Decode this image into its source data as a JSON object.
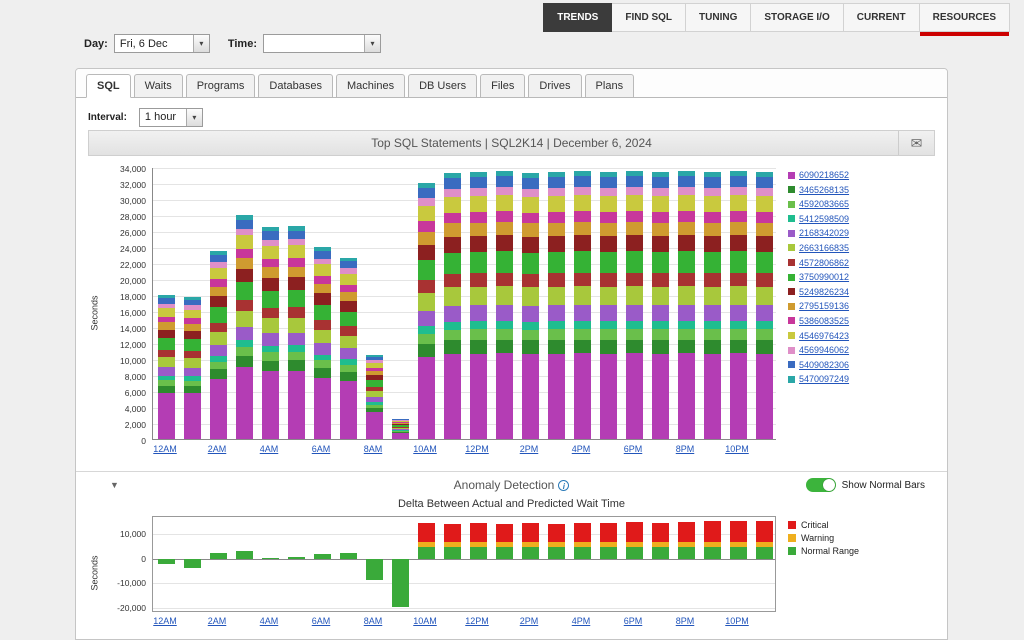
{
  "top_nav": {
    "tabs": [
      {
        "label": "TRENDS",
        "active": true,
        "underline": false
      },
      {
        "label": "FIND SQL",
        "active": false,
        "underline": false
      },
      {
        "label": "TUNING",
        "active": false,
        "underline": false
      },
      {
        "label": "STORAGE I/O",
        "active": false,
        "underline": false
      },
      {
        "label": "CURRENT",
        "active": false,
        "underline": false
      },
      {
        "label": "RESOURCES",
        "active": false,
        "underline": true
      }
    ],
    "underline_color": "#cc0000"
  },
  "filters": {
    "day_label": "Day:",
    "day_value": "Fri, 6 Dec",
    "time_label": "Time:",
    "time_value": ""
  },
  "tab_strip": {
    "tabs": [
      "SQL",
      "Waits",
      "Programs",
      "Databases",
      "Machines",
      "DB Users",
      "Files",
      "Drives",
      "Plans"
    ],
    "active": "SQL"
  },
  "interval": {
    "label": "Interval:",
    "value": "1 hour"
  },
  "chart_header": {
    "title": "Top SQL Statements  |  SQL2K14  |  December 6, 2024",
    "mail_icon": "envelope-icon"
  },
  "anomaly": {
    "title": "Anomaly Detection",
    "info_icon": "info-icon",
    "toggle_label": "Show Normal Bars",
    "toggle_on": true,
    "toggle_color": "#3cb43c",
    "subtitle": "Delta Between Actual and Predicted Wait Time",
    "legend": [
      {
        "label": "Critical",
        "color": "#e01a1a"
      },
      {
        "label": "Warning",
        "color": "#efaf1e"
      },
      {
        "label": "Normal Range",
        "color": "#3aaa3a"
      }
    ]
  },
  "chart_data": [
    {
      "type": "bar",
      "stacked": true,
      "title": "Top SQL Statements | SQL2K14 | December 6, 2024",
      "ylabel": "Seconds",
      "ylim": [
        0,
        34000
      ],
      "ytick_step": 2000,
      "grid": true,
      "legend_position": "right",
      "x": [
        "12AM",
        "1AM",
        "2AM",
        "3AM",
        "4AM",
        "5AM",
        "6AM",
        "7AM",
        "8AM",
        "9AM",
        "10AM",
        "11AM",
        "12PM",
        "1PM",
        "2PM",
        "3PM",
        "4PM",
        "5PM",
        "6PM",
        "7PM",
        "8PM",
        "9PM",
        "10PM",
        "11PM"
      ],
      "xtick_labels": [
        "12AM",
        "2AM",
        "4AM",
        "6AM",
        "8AM",
        "10AM",
        "12PM",
        "2PM",
        "4PM",
        "6PM",
        "8PM",
        "10PM"
      ],
      "totals": [
        18000,
        17800,
        23500,
        28000,
        26500,
        26600,
        24000,
        22700,
        10500,
        2500,
        32000,
        33300,
        33400,
        33500,
        33300,
        33400,
        33500,
        33400,
        33500,
        33400,
        33500,
        33400,
        33500,
        33400
      ],
      "series": [
        {
          "name": "6090218652",
          "color": "#b43db4",
          "values": [
            5760,
            5696,
            7520,
            8960,
            8480,
            8512,
            7680,
            7264,
            3360,
            800,
            10240,
            10656,
            10688,
            10720,
            10656,
            10688,
            10720,
            10688,
            10720,
            10688,
            10720,
            10688,
            10720,
            10688
          ]
        },
        {
          "name": "3465268135",
          "color": "#2e8b2e",
          "values": [
            900,
            890,
            1175,
            1400,
            1325,
            1330,
            1200,
            1135,
            525,
            125,
            1600,
            1665,
            1670,
            1675,
            1665,
            1670,
            1675,
            1670,
            1675,
            1670,
            1675,
            1670,
            1675,
            1670
          ]
        },
        {
          "name": "4592083665",
          "color": "#6abf4b",
          "values": [
            720,
            712,
            940,
            1120,
            1060,
            1064,
            960,
            908,
            420,
            100,
            1280,
            1332,
            1336,
            1340,
            1332,
            1336,
            1340,
            1336,
            1340,
            1336,
            1340,
            1336,
            1340,
            1336
          ]
        },
        {
          "name": "5412598509",
          "color": "#1fbd8f",
          "values": [
            540,
            534,
            705,
            840,
            795,
            798,
            720,
            681,
            315,
            75,
            960,
            999,
            1002,
            1005,
            999,
            1002,
            1005,
            1002,
            1005,
            1002,
            1005,
            1002,
            1005,
            1002
          ]
        },
        {
          "name": "2168342029",
          "color": "#9a5bc8",
          "values": [
            1080,
            1068,
            1410,
            1680,
            1590,
            1596,
            1440,
            1362,
            630,
            150,
            1920,
            1998,
            2004,
            2010,
            1998,
            2004,
            2010,
            2004,
            2010,
            2004,
            2010,
            2004,
            2010,
            2004
          ]
        },
        {
          "name": "2663166835",
          "color": "#a8c83c",
          "values": [
            1260,
            1246,
            1645,
            1960,
            1855,
            1862,
            1680,
            1589,
            735,
            175,
            2240,
            2331,
            2338,
            2345,
            2331,
            2338,
            2345,
            2338,
            2345,
            2338,
            2345,
            2338,
            2345,
            2338
          ]
        },
        {
          "name": "4572806862",
          "color": "#a83232",
          "values": [
            900,
            890,
            1175,
            1400,
            1325,
            1330,
            1200,
            1135,
            525,
            125,
            1600,
            1665,
            1670,
            1675,
            1665,
            1670,
            1675,
            1670,
            1675,
            1670,
            1675,
            1670,
            1675,
            1670
          ]
        },
        {
          "name": "3750990012",
          "color": "#35b235",
          "values": [
            1440,
            1424,
            1880,
            2240,
            2120,
            2128,
            1920,
            1816,
            840,
            200,
            2560,
            2664,
            2672,
            2680,
            2664,
            2672,
            2680,
            2672,
            2680,
            2672,
            2680,
            2672,
            2680,
            2672
          ]
        },
        {
          "name": "5249826234",
          "color": "#8c2020",
          "values": [
            1080,
            1068,
            1410,
            1680,
            1590,
            1596,
            1440,
            1362,
            630,
            150,
            1920,
            1998,
            2004,
            2010,
            1998,
            2004,
            2010,
            2004,
            2010,
            2004,
            2010,
            2004,
            2010,
            2004
          ]
        },
        {
          "name": "2795159136",
          "color": "#cf9b30",
          "values": [
            900,
            890,
            1175,
            1400,
            1325,
            1330,
            1200,
            1135,
            525,
            125,
            1600,
            1665,
            1670,
            1675,
            1665,
            1670,
            1675,
            1670,
            1675,
            1670,
            1675,
            1670,
            1675,
            1670
          ]
        },
        {
          "name": "5386083525",
          "color": "#c8379b",
          "values": [
            720,
            712,
            940,
            1120,
            1060,
            1064,
            960,
            908,
            420,
            100,
            1280,
            1332,
            1336,
            1340,
            1332,
            1336,
            1340,
            1336,
            1340,
            1336,
            1340,
            1336,
            1340,
            1336
          ]
        },
        {
          "name": "4546976423",
          "color": "#c9c93e",
          "values": [
            1080,
            1068,
            1410,
            1680,
            1590,
            1596,
            1440,
            1362,
            630,
            150,
            1920,
            1998,
            2004,
            2010,
            1998,
            2004,
            2010,
            2004,
            2010,
            2004,
            2010,
            2004,
            2010,
            2004
          ]
        },
        {
          "name": "4569946062",
          "color": "#df8fc8",
          "values": [
            540,
            534,
            705,
            840,
            795,
            798,
            720,
            681,
            315,
            75,
            960,
            999,
            1002,
            1005,
            999,
            1002,
            1005,
            1002,
            1005,
            1002,
            1005,
            1002,
            1005,
            1002
          ]
        },
        {
          "name": "5409082306",
          "color": "#3a6bc0",
          "values": [
            720,
            712,
            940,
            1120,
            1060,
            1064,
            960,
            908,
            420,
            100,
            1280,
            1332,
            1336,
            1340,
            1332,
            1336,
            1340,
            1336,
            1340,
            1336,
            1340,
            1336,
            1340,
            1336
          ]
        },
        {
          "name": "5470097249",
          "color": "#2aa7a7",
          "values": [
            360,
            356,
            470,
            560,
            530,
            532,
            480,
            454,
            210,
            50,
            640,
            666,
            668,
            670,
            666,
            668,
            670,
            668,
            670,
            668,
            670,
            668,
            670,
            668
          ]
        }
      ]
    },
    {
      "type": "bar",
      "stacked": true,
      "title": "Delta Between Actual and Predicted Wait Time",
      "ylabel": "Seconds",
      "ylim": [
        -22000,
        17000
      ],
      "yticks": [
        10000,
        0,
        -10000,
        -20000
      ],
      "grid": true,
      "legend_position": "right",
      "x": [
        "12AM",
        "1AM",
        "2AM",
        "3AM",
        "4AM",
        "5AM",
        "6AM",
        "7AM",
        "8AM",
        "9AM",
        "10AM",
        "11AM",
        "12PM",
        "1PM",
        "2PM",
        "3PM",
        "4PM",
        "5PM",
        "6PM",
        "7PM",
        "8PM",
        "9PM",
        "10PM",
        "11PM"
      ],
      "xtick_labels": [
        "12AM",
        "2AM",
        "4AM",
        "6AM",
        "8AM",
        "10AM",
        "12PM",
        "2PM",
        "4PM",
        "6PM",
        "8PM",
        "10PM"
      ],
      "series": [
        {
          "name": "Normal Range",
          "color": "#3aaa3a",
          "values": [
            -2000,
            -3800,
            2200,
            3200,
            300,
            600,
            1800,
            2300,
            -8500,
            -19500,
            5000,
            5000,
            5000,
            5000,
            5000,
            5000,
            5000,
            5000,
            5000,
            5000,
            5000,
            5000,
            5000,
            5000
          ]
        },
        {
          "name": "Warning",
          "color": "#efaf1e",
          "values": [
            0,
            0,
            0,
            0,
            0,
            0,
            0,
            0,
            0,
            0,
            2000,
            2000,
            2000,
            2000,
            2000,
            2000,
            2000,
            2000,
            2000,
            2000,
            2000,
            2000,
            2000,
            2000
          ]
        },
        {
          "name": "Critical",
          "color": "#e01a1a",
          "values": [
            0,
            0,
            0,
            0,
            0,
            0,
            0,
            0,
            0,
            0,
            7500,
            7000,
            7500,
            7000,
            7500,
            7000,
            7500,
            7500,
            8000,
            7500,
            8000,
            8500,
            8500,
            8500
          ]
        }
      ]
    }
  ]
}
